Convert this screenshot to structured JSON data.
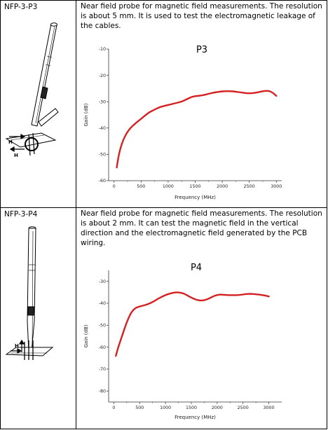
{
  "rows": [
    {
      "model": "NFP-3-P3",
      "description": "Near field probe for magnetic field measurements. The resolution is about 5 mm. It is used to test the electromagnetic leakage of the cables.",
      "probe_labels": [
        "H",
        "H"
      ]
    },
    {
      "model": "NFP-3-P4",
      "description": "Near field probe for magnetic field measurements. The resolution is about 2 mm. It can test the magnetic field in the vertical direction and the electromagnetic field generated by the PCB wiring.",
      "probe_labels": [
        "H"
      ]
    }
  ],
  "chart_data": [
    {
      "type": "line",
      "title": "P3",
      "xlabel": "Frequency (MHz)",
      "ylabel": "Gain (dB)",
      "xlim": [
        -100,
        3100
      ],
      "ylim": [
        -60,
        -10
      ],
      "xticks": [
        0,
        500,
        1000,
        1500,
        2000,
        2500,
        3000
      ],
      "yticks": [
        -10,
        -20,
        -30,
        -40,
        -50,
        -60
      ],
      "color": "#d42020",
      "series": [
        {
          "x": [
            50,
            80,
            120,
            170,
            230,
            300,
            380,
            470,
            560,
            650,
            750,
            850,
            950,
            1050,
            1150,
            1250,
            1350,
            1450,
            1550,
            1650,
            1750,
            1850,
            1950,
            2050,
            2150,
            2250,
            2350,
            2450,
            2550,
            2650,
            2750,
            2850,
            2930,
            3000
          ],
          "y": [
            -55,
            -51,
            -47.5,
            -44.5,
            -42,
            -40,
            -38.5,
            -37,
            -35.5,
            -34,
            -33,
            -32,
            -31.5,
            -31,
            -30.5,
            -30,
            -29,
            -28,
            -27.8,
            -27.5,
            -27,
            -26.5,
            -26.2,
            -26,
            -26,
            -26.2,
            -26.5,
            -26.8,
            -26.8,
            -26.5,
            -26,
            -25.8,
            -26.5,
            -27.8
          ]
        }
      ]
    },
    {
      "type": "line",
      "title": "P4",
      "xlabel": "Frequency (MHz)",
      "ylabel": "Gain (dB)",
      "xlim": [
        -100,
        3250
      ],
      "ylim": [
        -85,
        -25
      ],
      "xticks": [
        0,
        500,
        1000,
        1500,
        2000,
        2500,
        3000
      ],
      "yticks": [
        -30,
        -40,
        -50,
        -60,
        -70,
        -80
      ],
      "color": "#d42020",
      "series": [
        {
          "x": [
            40,
            80,
            130,
            180,
            230,
            280,
            330,
            380,
            430,
            500,
            580,
            650,
            750,
            850,
            950,
            1050,
            1150,
            1250,
            1350,
            1450,
            1550,
            1650,
            1750,
            1850,
            1950,
            2050,
            2150,
            2250,
            2350,
            2450,
            2550,
            2650,
            2750,
            2850,
            2950,
            3000
          ],
          "y": [
            -64,
            -60.5,
            -57,
            -53.5,
            -50,
            -47,
            -44.5,
            -43,
            -42,
            -41.5,
            -41,
            -40.5,
            -39.5,
            -38,
            -36.8,
            -35.8,
            -35.2,
            -35,
            -35.5,
            -36.8,
            -38,
            -38.8,
            -38.7,
            -37.8,
            -36.5,
            -36,
            -36.2,
            -36.3,
            -36.3,
            -36.2,
            -35.8,
            -35.7,
            -35.9,
            -36.2,
            -36.6,
            -36.9
          ]
        }
      ]
    }
  ]
}
